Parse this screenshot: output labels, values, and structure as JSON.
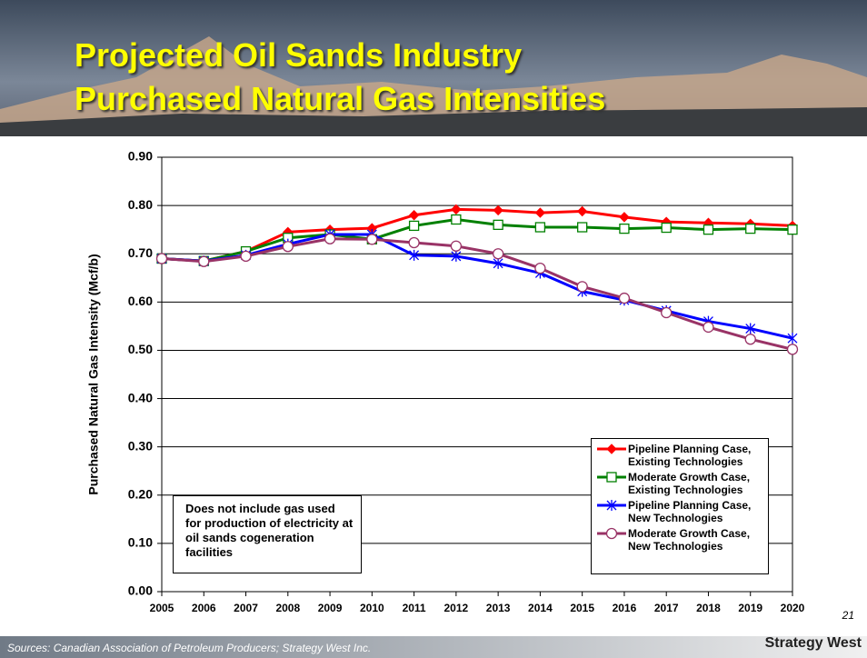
{
  "chart_data": {
    "type": "line",
    "title": [
      "Projected Oil Sands Industry",
      "Purchased Natural Gas Intensities"
    ],
    "y_label": "Purchased Natural Gas Intensity (Mcf/b)",
    "x": [
      2005,
      2006,
      2007,
      2008,
      2009,
      2010,
      2011,
      2012,
      2013,
      2014,
      2015,
      2016,
      2017,
      2018,
      2019,
      2020
    ],
    "xlim": [
      2005,
      2020
    ],
    "xticks": [
      2005,
      2006,
      2007,
      2008,
      2009,
      2010,
      2011,
      2012,
      2013,
      2014,
      2015,
      2016,
      2017,
      2018,
      2019,
      2020
    ],
    "ylim": [
      0,
      0.9
    ],
    "yticks": [
      {
        "value": 0,
        "label": "0.00"
      },
      {
        "value": 0.1,
        "label": "0.10"
      },
      {
        "value": 0.2,
        "label": "0.20"
      },
      {
        "value": 0.3,
        "label": "0.30"
      },
      {
        "value": 0.4,
        "label": "0.40"
      },
      {
        "value": 0.5,
        "label": "0.50"
      },
      {
        "value": 0.6,
        "label": "0.60"
      },
      {
        "value": 0.7,
        "label": "0.70"
      },
      {
        "value": 0.8,
        "label": "0.80"
      },
      {
        "value": 0.9,
        "label": "0.90"
      }
    ],
    "grid": true,
    "legend": "lower right",
    "series": [
      {
        "name": "Pipeline Planning Case, Existing Technologies",
        "color": "#ff0000",
        "marker": "diamond",
        "values": [
          0.69,
          0.685,
          0.705,
          0.745,
          0.75,
          0.753,
          0.78,
          0.792,
          0.79,
          0.785,
          0.788,
          0.776,
          0.766,
          0.764,
          0.762,
          0.758
        ]
      },
      {
        "name": "Moderate Growth Case, Existing Technologies",
        "color": "#008000",
        "marker": "square",
        "values": [
          0.69,
          0.685,
          0.705,
          0.733,
          0.74,
          0.73,
          0.758,
          0.771,
          0.76,
          0.755,
          0.755,
          0.752,
          0.754,
          0.75,
          0.752,
          0.75
        ]
      },
      {
        "name": "Pipeline Planning Case, New Technologies",
        "color": "#0000ff",
        "marker": "star",
        "values": [
          0.69,
          0.685,
          0.697,
          0.72,
          0.74,
          0.74,
          0.697,
          0.695,
          0.68,
          0.66,
          0.622,
          0.604,
          0.582,
          0.56,
          0.545,
          0.525
        ]
      },
      {
        "name": "Moderate Growth Case, New Technologies",
        "color": "#993366",
        "marker": "circle",
        "values": [
          0.69,
          0.684,
          0.695,
          0.715,
          0.731,
          0.73,
          0.723,
          0.716,
          0.7,
          0.67,
          0.632,
          0.608,
          0.578,
          0.548,
          0.523,
          0.502
        ]
      }
    ],
    "annotation": "Does not include gas used for production of electricity at oil sands cogeneration facilities",
    "page_number": "21",
    "source": "Sources: Canadian Association of Petroleum Producers; Strategy West Inc.",
    "logo": "Strategy West"
  }
}
